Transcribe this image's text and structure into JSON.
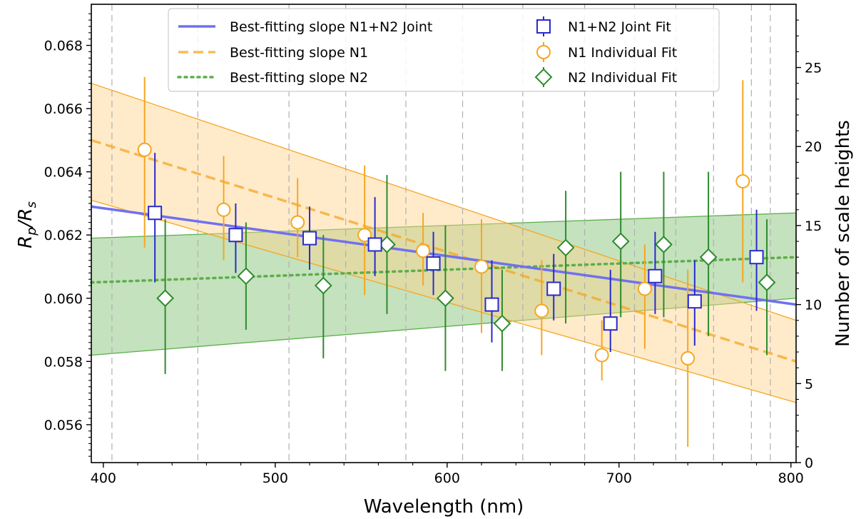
{
  "chart_data": {
    "type": "scatter",
    "xlabel": "Wavelength (nm)",
    "ylabel": "R_p/R_s",
    "ylabel_main": "R",
    "ylabel_sub_num": "p",
    "ylabel_sep": "/R",
    "ylabel_sub_den": "s",
    "y2label": "Number of scale heights",
    "xlim": [
      393,
      803
    ],
    "ylim": [
      0.0548,
      0.0693
    ],
    "y2lim": [
      0,
      29
    ],
    "xticks": [
      400,
      500,
      600,
      700,
      800
    ],
    "yticks": [
      0.056,
      0.058,
      0.06,
      0.062,
      0.064,
      0.066,
      0.068
    ],
    "ytick_labels": [
      "0.056",
      "0.058",
      "0.060",
      "0.062",
      "0.064",
      "0.066",
      "0.068"
    ],
    "y2ticks": [
      0,
      5,
      10,
      15,
      20,
      25
    ],
    "bin_edges": [
      405,
      455,
      508,
      541,
      576,
      609,
      644,
      680,
      709,
      733,
      755,
      777,
      788
    ],
    "grid": "vertical dashed lines at spectral bin edges",
    "legend_position": "top",
    "colors": {
      "joint": "#2a2acc",
      "joint_line": "#7070f0",
      "n1": "#f5a623",
      "n2": "#2e8b2e",
      "n2_fill": "#7cbf6c",
      "n1_fill": "#ffd28a"
    },
    "legend": {
      "joint_line": "Best-fitting slope N1+N2 Joint",
      "n1_line": "Best-fitting slope N1",
      "n2_line": "Best-fitting slope N2",
      "joint_points": "N1+N2 Joint Fit",
      "n1_points": "N1 Individual Fit",
      "n2_points": "N2 Individual Fit"
    },
    "slopes": {
      "joint": {
        "x": [
          393,
          803
        ],
        "y": [
          0.0629,
          0.0598
        ]
      },
      "n1": {
        "x": [
          393,
          803
        ],
        "y": [
          0.065,
          0.058
        ],
        "band_upper": [
          0.0668,
          0.0593
        ],
        "band_lower": [
          0.0631,
          0.0567
        ]
      },
      "n2": {
        "x": [
          393,
          803
        ],
        "y": [
          0.0605,
          0.0613
        ],
        "band_upper": [
          0.0619,
          0.0627
        ],
        "band_lower": [
          0.0582,
          0.06
        ]
      }
    },
    "series": [
      {
        "name": "N1+N2 Joint Fit",
        "marker": "square",
        "points": [
          {
            "x": 430,
            "y": 0.0627,
            "lo": 0.0605,
            "hi": 0.0646
          },
          {
            "x": 477,
            "y": 0.062,
            "lo": 0.0608,
            "hi": 0.063
          },
          {
            "x": 520,
            "y": 0.0619,
            "lo": 0.0609,
            "hi": 0.0629
          },
          {
            "x": 558,
            "y": 0.0617,
            "lo": 0.0607,
            "hi": 0.0632
          },
          {
            "x": 592,
            "y": 0.0611,
            "lo": 0.0601,
            "hi": 0.0621
          },
          {
            "x": 626,
            "y": 0.0598,
            "lo": 0.0586,
            "hi": 0.0612
          },
          {
            "x": 662,
            "y": 0.0603,
            "lo": 0.0593,
            "hi": 0.0614
          },
          {
            "x": 695,
            "y": 0.0592,
            "lo": 0.0583,
            "hi": 0.0609
          },
          {
            "x": 721,
            "y": 0.0607,
            "lo": 0.0595,
            "hi": 0.0621
          },
          {
            "x": 744,
            "y": 0.0599,
            "lo": 0.0585,
            "hi": 0.0612
          },
          {
            "x": 780,
            "y": 0.0613,
            "lo": 0.0596,
            "hi": 0.0628
          }
        ]
      },
      {
        "name": "N1 Individual Fit",
        "marker": "circle",
        "points": [
          {
            "x": 424,
            "y": 0.0647,
            "lo": 0.0616,
            "hi": 0.067
          },
          {
            "x": 470,
            "y": 0.0628,
            "lo": 0.0612,
            "hi": 0.0645
          },
          {
            "x": 513,
            "y": 0.0624,
            "lo": 0.0613,
            "hi": 0.0638
          },
          {
            "x": 552,
            "y": 0.062,
            "lo": 0.0601,
            "hi": 0.0642
          },
          {
            "x": 586,
            "y": 0.0615,
            "lo": 0.0604,
            "hi": 0.0627
          },
          {
            "x": 620,
            "y": 0.061,
            "lo": 0.0589,
            "hi": 0.0625
          },
          {
            "x": 655,
            "y": 0.0596,
            "lo": 0.0582,
            "hi": 0.0612
          },
          {
            "x": 690,
            "y": 0.0582,
            "lo": 0.0574,
            "hi": 0.0593
          },
          {
            "x": 715,
            "y": 0.0603,
            "lo": 0.0584,
            "hi": 0.0617
          },
          {
            "x": 740,
            "y": 0.0581,
            "lo": 0.0553,
            "hi": 0.0609
          },
          {
            "x": 772,
            "y": 0.0637,
            "lo": 0.0605,
            "hi": 0.0669
          }
        ]
      },
      {
        "name": "N2 Individual Fit",
        "marker": "diamond",
        "points": [
          {
            "x": 436,
            "y": 0.06,
            "lo": 0.0576,
            "hi": 0.0625
          },
          {
            "x": 483,
            "y": 0.0607,
            "lo": 0.059,
            "hi": 0.0624
          },
          {
            "x": 528,
            "y": 0.0604,
            "lo": 0.0581,
            "hi": 0.062
          },
          {
            "x": 565,
            "y": 0.0617,
            "lo": 0.0595,
            "hi": 0.0639
          },
          {
            "x": 599,
            "y": 0.06,
            "lo": 0.0577,
            "hi": 0.0623
          },
          {
            "x": 632,
            "y": 0.0592,
            "lo": 0.0577,
            "hi": 0.0609
          },
          {
            "x": 669,
            "y": 0.0616,
            "lo": 0.0592,
            "hi": 0.0634
          },
          {
            "x": 701,
            "y": 0.0618,
            "lo": 0.0594,
            "hi": 0.064
          },
          {
            "x": 726,
            "y": 0.0617,
            "lo": 0.0594,
            "hi": 0.064
          },
          {
            "x": 752,
            "y": 0.0613,
            "lo": 0.0588,
            "hi": 0.064
          },
          {
            "x": 786,
            "y": 0.0605,
            "lo": 0.0582,
            "hi": 0.0625
          }
        ]
      }
    ]
  }
}
